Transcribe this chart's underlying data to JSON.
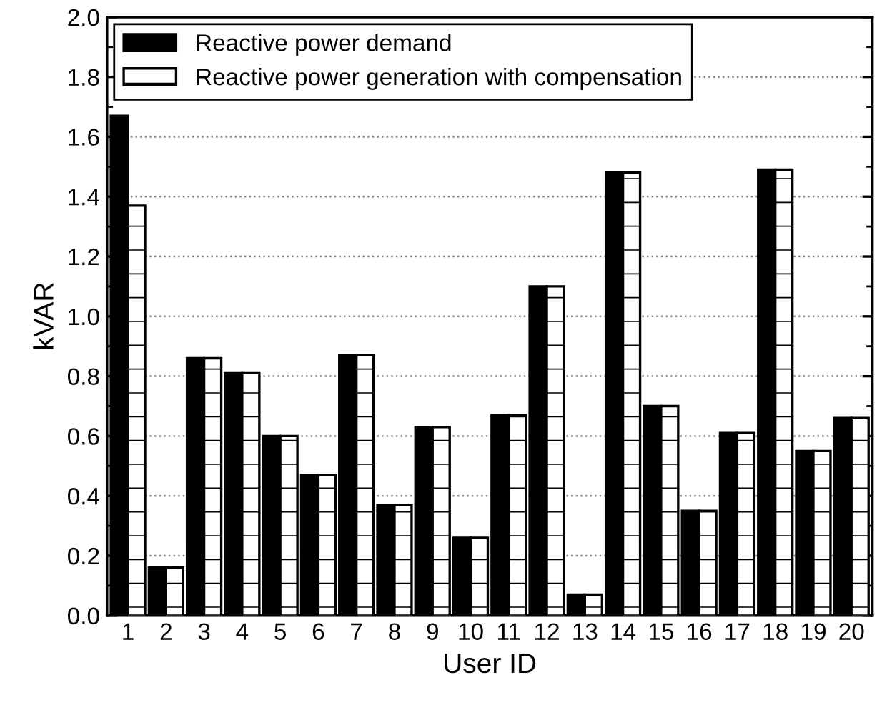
{
  "chart_data": {
    "type": "bar",
    "xlabel": "User ID",
    "ylabel": "kVAR",
    "categories": [
      "1",
      "2",
      "3",
      "4",
      "5",
      "6",
      "7",
      "8",
      "9",
      "10",
      "11",
      "12",
      "13",
      "14",
      "15",
      "16",
      "17",
      "18",
      "19",
      "20"
    ],
    "series": [
      {
        "name": "Reactive power demand",
        "color": "#000000",
        "values": [
          1.67,
          0.16,
          0.86,
          0.81,
          0.6,
          0.47,
          0.87,
          0.37,
          0.63,
          0.26,
          0.67,
          1.1,
          0.07,
          1.48,
          0.7,
          0.35,
          0.61,
          1.49,
          0.55,
          0.66
        ]
      },
      {
        "name": "Reactive power generation with compensation",
        "color": "#ffffff",
        "values": [
          1.37,
          0.16,
          0.86,
          0.81,
          0.6,
          0.47,
          0.87,
          0.37,
          0.63,
          0.26,
          0.67,
          1.1,
          0.07,
          1.48,
          0.7,
          0.35,
          0.61,
          1.49,
          0.55,
          0.66
        ]
      }
    ],
    "ylim": [
      0,
      2.0
    ],
    "yticks": [
      {
        "value": 0,
        "label": "0.0"
      },
      {
        "value": 0.2,
        "label": "0.2"
      },
      {
        "value": 0.4,
        "label": "0.4"
      },
      {
        "value": 0.6,
        "label": "0.6"
      },
      {
        "value": 0.8,
        "label": "0.8"
      },
      {
        "value": 1.0,
        "label": "1.0"
      },
      {
        "value": 1.2,
        "label": "1.2"
      },
      {
        "value": 1.4,
        "label": "1.4"
      },
      {
        "value": 1.6,
        "label": "1.6"
      },
      {
        "value": 1.8,
        "label": "1.8"
      },
      {
        "value": 2.0,
        "label": "2.0"
      }
    ],
    "grid": "y",
    "legend": "top left"
  }
}
